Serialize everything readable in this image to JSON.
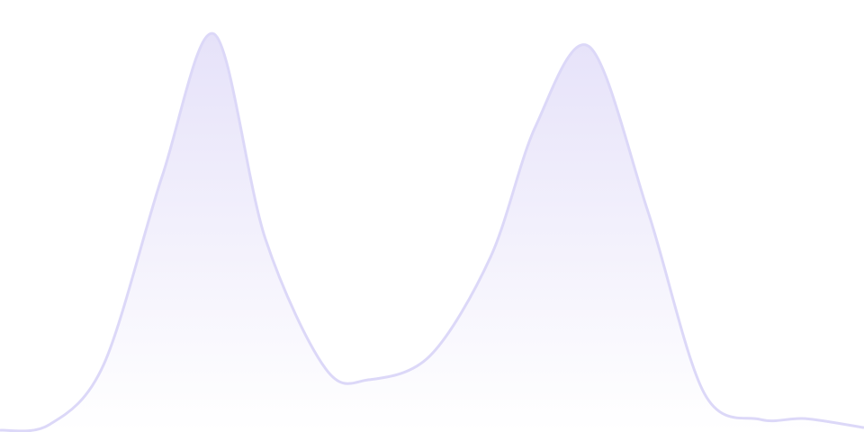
{
  "chart_data": {
    "type": "area",
    "title": "",
    "xlabel": "",
    "ylabel": "",
    "xlim": [
      0,
      100
    ],
    "ylim": [
      0,
      100
    ],
    "grid": false,
    "legend": "none",
    "series": [
      {
        "x": [
          0,
          5.7,
          12,
          18.8,
          24.8,
          30.7,
          37.7,
          42.7,
          49.8,
          56.8,
          62,
          68.2,
          75,
          81.5,
          88,
          93.2,
          100
        ],
        "values": [
          0.4,
          1.7,
          15.6,
          59.4,
          92.1,
          44.8,
          14.6,
          12.1,
          17.7,
          40.6,
          70.8,
          89.2,
          51,
          9,
          2.9,
          3.1,
          1
        ]
      }
    ],
    "colors": {
      "stroke": "#dcd8f8",
      "fill_top": "#e6e2f9",
      "fill_bottom": "#ffffff"
    }
  }
}
